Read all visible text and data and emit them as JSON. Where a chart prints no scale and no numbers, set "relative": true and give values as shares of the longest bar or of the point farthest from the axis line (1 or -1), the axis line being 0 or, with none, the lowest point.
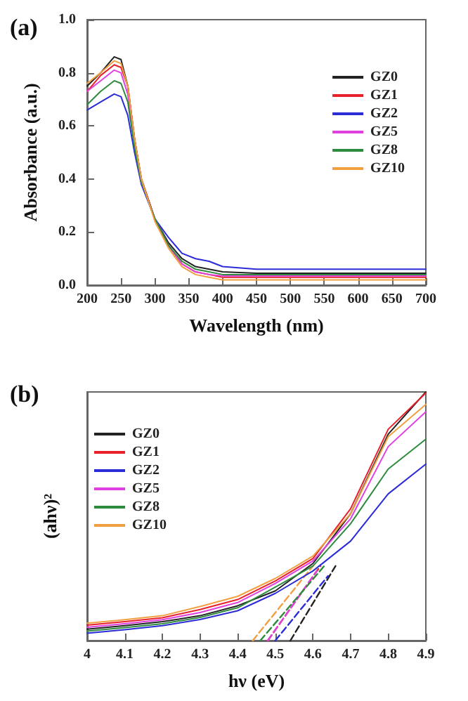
{
  "chart_data": [
    {
      "type": "line",
      "title": "(a)",
      "xlabel": "Wavelength (nm)",
      "ylabel": "Absorbance (a.u.)",
      "x": [
        200,
        220,
        240,
        250,
        260,
        270,
        280,
        300,
        320,
        340,
        360,
        380,
        400,
        450,
        500,
        600,
        700
      ],
      "xlim": [
        200,
        700
      ],
      "xticks": [
        200,
        250,
        300,
        350,
        400,
        450,
        500,
        550,
        600,
        650,
        700
      ],
      "ylim": [
        0,
        1
      ],
      "yticks": [
        {
          "value": 0,
          "label": "0.0"
        },
        0.2,
        0.4,
        0.6,
        0.8,
        {
          "value": 1,
          "label": "1.0"
        }
      ],
      "grid": false,
      "legend": "top right",
      "marker": "none",
      "series": [
        {
          "name": "GZ0",
          "color": "#222222",
          "values": [
            0.75,
            0.8,
            0.86,
            0.85,
            0.75,
            0.55,
            0.4,
            0.25,
            0.16,
            0.1,
            0.07,
            0.06,
            0.05,
            0.045,
            0.045,
            0.045,
            0.045
          ]
        },
        {
          "name": "GZ1",
          "color": "#e8202a",
          "values": [
            0.73,
            0.79,
            0.83,
            0.82,
            0.75,
            0.55,
            0.4,
            0.25,
            0.15,
            0.08,
            0.05,
            0.04,
            0.03,
            0.03,
            0.03,
            0.03,
            0.03
          ]
        },
        {
          "name": "GZ2",
          "color": "#2b2bd8",
          "values": [
            0.66,
            0.69,
            0.72,
            0.71,
            0.64,
            0.5,
            0.38,
            0.25,
            0.18,
            0.12,
            0.1,
            0.09,
            0.07,
            0.06,
            0.06,
            0.06,
            0.06
          ]
        },
        {
          "name": "GZ5",
          "color": "#e040e0",
          "values": [
            0.73,
            0.77,
            0.81,
            0.8,
            0.72,
            0.53,
            0.39,
            0.25,
            0.15,
            0.08,
            0.05,
            0.04,
            0.035,
            0.035,
            0.035,
            0.035,
            0.035
          ]
        },
        {
          "name": "GZ8",
          "color": "#2e8b3e",
          "values": [
            0.68,
            0.73,
            0.77,
            0.76,
            0.69,
            0.52,
            0.39,
            0.25,
            0.15,
            0.09,
            0.06,
            0.05,
            0.04,
            0.04,
            0.04,
            0.04,
            0.04
          ]
        },
        {
          "name": "GZ10",
          "color": "#f0a040",
          "values": [
            0.76,
            0.8,
            0.845,
            0.835,
            0.75,
            0.55,
            0.4,
            0.24,
            0.14,
            0.07,
            0.04,
            0.03,
            0.02,
            0.02,
            0.02,
            0.02,
            0.02
          ]
        }
      ]
    },
    {
      "type": "line",
      "title": "(b)",
      "xlabel": "hν (eV)",
      "ylabel": "(ahν)²",
      "relative": true,
      "x": [
        4.0,
        4.1,
        4.2,
        4.3,
        4.4,
        4.5,
        4.6,
        4.7,
        4.8,
        4.9
      ],
      "xlim": [
        4.0,
        4.9
      ],
      "xticks": [
        4.0,
        4.1,
        4.2,
        4.3,
        4.4,
        4.5,
        4.6,
        4.7,
        4.8,
        4.9
      ],
      "grid": false,
      "legend": "top left",
      "marker": "none",
      "series": [
        {
          "name": "GZ0",
          "color": "#222222",
          "values": [
            0.046,
            0.06,
            0.076,
            0.1,
            0.14,
            0.2,
            0.31,
            0.51,
            0.83,
            1.0
          ]
        },
        {
          "name": "GZ1",
          "color": "#e8202a",
          "values": [
            0.062,
            0.076,
            0.092,
            0.125,
            0.165,
            0.24,
            0.33,
            0.53,
            0.85,
            0.996
          ]
        },
        {
          "name": "GZ2",
          "color": "#2b2bd8",
          "values": [
            0.03,
            0.044,
            0.06,
            0.085,
            0.12,
            0.19,
            0.28,
            0.4,
            0.59,
            0.71
          ]
        },
        {
          "name": "GZ5",
          "color": "#e040e0",
          "values": [
            0.054,
            0.068,
            0.084,
            0.113,
            0.153,
            0.23,
            0.32,
            0.49,
            0.78,
            0.92
          ]
        },
        {
          "name": "GZ8",
          "color": "#2e8b3e",
          "values": [
            0.038,
            0.052,
            0.068,
            0.093,
            0.132,
            0.215,
            0.3,
            0.47,
            0.69,
            0.81
          ]
        },
        {
          "name": "GZ10",
          "color": "#f0a040",
          "values": [
            0.07,
            0.084,
            0.1,
            0.137,
            0.178,
            0.25,
            0.34,
            0.51,
            0.82,
            0.95
          ]
        },
        {
          "color": "#222222",
          "line_style": "dashed",
          "x": [
            4.54,
            4.66
          ],
          "values": [
            0,
            0.3
          ]
        },
        {
          "color": "#e8202a",
          "line_style": "dashed",
          "x": [
            4.48,
            4.62
          ],
          "values": [
            0,
            0.3
          ]
        },
        {
          "color": "#2b2bd8",
          "line_style": "dashed",
          "x": [
            4.5,
            4.64
          ],
          "values": [
            0,
            0.26
          ]
        },
        {
          "color": "#e040e0",
          "line_style": "dashed",
          "x": [
            4.48,
            4.61
          ],
          "values": [
            0,
            0.28
          ]
        },
        {
          "color": "#2e8b3e",
          "line_style": "dashed",
          "x": [
            4.46,
            4.63
          ],
          "values": [
            0,
            0.3
          ]
        },
        {
          "color": "#f0a040",
          "line_style": "dashed",
          "x": [
            4.44,
            4.6
          ],
          "values": [
            0,
            0.3
          ]
        }
      ]
    }
  ]
}
